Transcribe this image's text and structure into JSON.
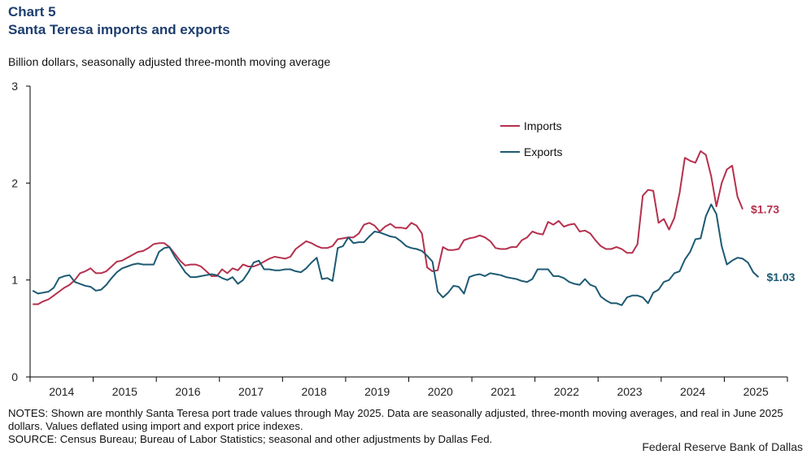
{
  "header": {
    "chart_number": "Chart 5",
    "title": "Santa Teresa imports and exports",
    "subtitle": "Billion dollars, seasonally adjusted three-month  moving average"
  },
  "footer": {
    "notes": "NOTES: Shown are monthly Santa Teresa port trade values through May 2025. Data are seasonally adjusted, three-month moving averages, and real in June 2025 dollars. Values deflated using import and export price indexes.",
    "source": "SOURCE: Census Bureau; Bureau of Labor Statistics; seasonal and other adjustments by Dallas Fed.",
    "credit": "Federal Reserve Bank of Dallas"
  },
  "chart_data": {
    "type": "line",
    "title": "Santa Teresa imports and exports",
    "ylabel": "Billion dollars, seasonally adjusted three-month  moving average",
    "ylim": [
      0,
      3
    ],
    "yticks": [
      "0",
      "1",
      "2",
      "3"
    ],
    "xlabels": [
      "2014",
      "2015",
      "2016",
      "2017",
      "2018",
      "2019",
      "2020",
      "2021",
      "2022",
      "2023",
      "2024",
      "2025"
    ],
    "x_start": "2014-01",
    "x_end": "2025-05",
    "grid": false,
    "legend": "upper-right",
    "series": [
      {
        "name": "Imports",
        "color": "#b5304e",
        "end_label": "$1.73",
        "values": [
          0.75,
          0.75,
          0.78,
          0.8,
          0.84,
          0.88,
          0.92,
          0.95,
          1.0,
          1.07,
          1.09,
          1.12,
          1.07,
          1.07,
          1.09,
          1.14,
          1.19,
          1.2,
          1.23,
          1.26,
          1.29,
          1.3,
          1.33,
          1.37,
          1.38,
          1.38,
          1.34,
          1.27,
          1.2,
          1.15,
          1.16,
          1.16,
          1.14,
          1.09,
          1.04,
          1.04,
          1.11,
          1.07,
          1.12,
          1.1,
          1.16,
          1.14,
          1.14,
          1.16,
          1.19,
          1.22,
          1.24,
          1.23,
          1.22,
          1.24,
          1.32,
          1.36,
          1.4,
          1.38,
          1.35,
          1.33,
          1.33,
          1.35,
          1.42,
          1.43,
          1.44,
          1.44,
          1.48,
          1.57,
          1.59,
          1.56,
          1.5,
          1.55,
          1.58,
          1.54,
          1.54,
          1.53,
          1.59,
          1.56,
          1.48,
          1.13,
          1.09,
          1.1,
          1.34,
          1.31,
          1.31,
          1.32,
          1.41,
          1.43,
          1.44,
          1.46,
          1.44,
          1.4,
          1.33,
          1.32,
          1.32,
          1.34,
          1.34,
          1.41,
          1.44,
          1.5,
          1.48,
          1.47,
          1.6,
          1.57,
          1.61,
          1.55,
          1.57,
          1.58,
          1.5,
          1.51,
          1.48,
          1.41,
          1.35,
          1.32,
          1.32,
          1.34,
          1.32,
          1.28,
          1.28,
          1.37,
          1.87,
          1.93,
          1.92,
          1.59,
          1.63,
          1.52,
          1.64,
          1.9,
          2.26,
          2.23,
          2.21,
          2.33,
          2.29,
          2.07,
          1.76,
          2.0,
          2.14,
          2.18,
          1.86,
          1.73
        ]
      },
      {
        "name": "Exports",
        "color": "#1d5a73",
        "end_label": "$1.03",
        "values": [
          0.89,
          0.86,
          0.87,
          0.88,
          0.92,
          1.02,
          1.04,
          1.05,
          0.98,
          0.96,
          0.94,
          0.93,
          0.89,
          0.9,
          0.95,
          1.02,
          1.08,
          1.12,
          1.14,
          1.16,
          1.17,
          1.16,
          1.16,
          1.16,
          1.29,
          1.33,
          1.34,
          1.24,
          1.16,
          1.08,
          1.03,
          1.03,
          1.04,
          1.05,
          1.06,
          1.05,
          1.02,
          1.0,
          1.03,
          0.96,
          1.0,
          1.08,
          1.18,
          1.2,
          1.11,
          1.11,
          1.1,
          1.1,
          1.11,
          1.11,
          1.09,
          1.08,
          1.12,
          1.18,
          1.23,
          1.01,
          1.02,
          0.99,
          1.33,
          1.35,
          1.44,
          1.38,
          1.39,
          1.39,
          1.45,
          1.5,
          1.49,
          1.47,
          1.45,
          1.44,
          1.4,
          1.35,
          1.33,
          1.32,
          1.3,
          1.25,
          1.19,
          0.88,
          0.82,
          0.87,
          0.94,
          0.93,
          0.86,
          1.03,
          1.05,
          1.06,
          1.04,
          1.07,
          1.06,
          1.05,
          1.03,
          1.02,
          1.01,
          0.99,
          0.98,
          1.01,
          1.11,
          1.11,
          1.11,
          1.04,
          1.04,
          1.02,
          0.98,
          0.96,
          0.95,
          1.01,
          0.95,
          0.93,
          0.83,
          0.79,
          0.76,
          0.76,
          0.74,
          0.82,
          0.84,
          0.84,
          0.82,
          0.76,
          0.87,
          0.9,
          0.98,
          1.0,
          1.07,
          1.09,
          1.21,
          1.29,
          1.42,
          1.43,
          1.66,
          1.78,
          1.68,
          1.35,
          1.16,
          1.2,
          1.23,
          1.22,
          1.18,
          1.08,
          1.03
        ]
      }
    ]
  }
}
